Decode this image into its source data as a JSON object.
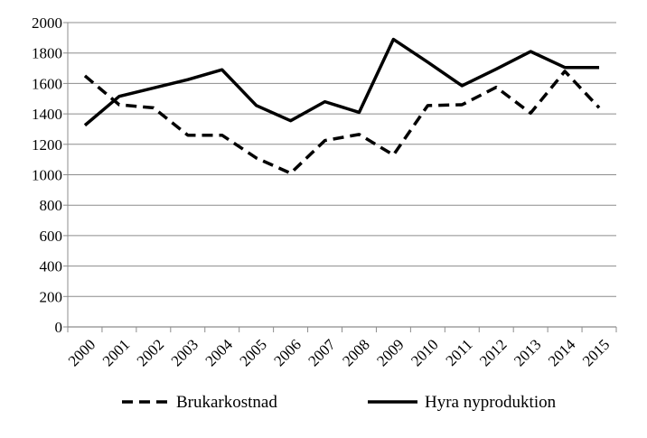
{
  "chart_data": {
    "type": "line",
    "title": "",
    "xlabel": "",
    "ylabel": "",
    "x": [
      "2000",
      "2001",
      "2002",
      "2003",
      "2004",
      "2005",
      "2006",
      "2007",
      "2008",
      "2009",
      "2010",
      "2011",
      "2012",
      "2013",
      "2014",
      "2015"
    ],
    "ylim": [
      0,
      2000
    ],
    "yticks": [
      0,
      200,
      400,
      600,
      800,
      1000,
      1200,
      1400,
      1600,
      1800,
      2000
    ],
    "grid": "horizontal",
    "legend_position": "bottom",
    "series": [
      {
        "name": "Brukarkostnad",
        "style": "dashed",
        "color": "#000000",
        "values": [
          1650,
          1460,
          1440,
          1260,
          1260,
          1110,
          1010,
          1225,
          1265,
          1130,
          1455,
          1460,
          1575,
          1405,
          1680,
          1440
        ]
      },
      {
        "name": "Hyra nyproduktion",
        "style": "solid",
        "color": "#000000",
        "values": [
          1325,
          1515,
          1570,
          1625,
          1690,
          1455,
          1355,
          1480,
          1410,
          1890,
          1740,
          1585,
          1695,
          1810,
          1705,
          1705
        ]
      }
    ]
  }
}
